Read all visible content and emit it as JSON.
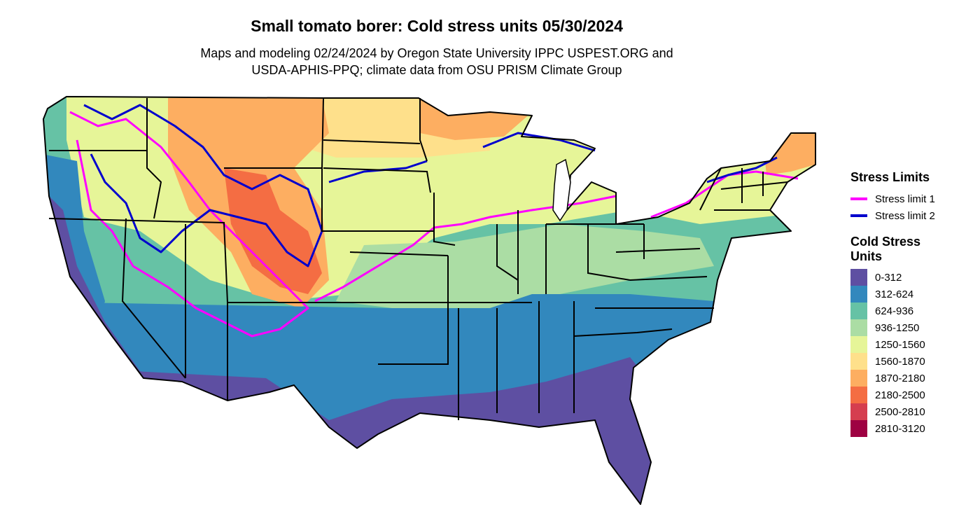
{
  "title": "Small tomato borer: Cold stress units 05/30/2024",
  "subtitle_line1": "Maps and modeling 02/24/2024 by Oregon State University IPPC USPEST.ORG and",
  "subtitle_line2": "USDA-APHIS-PPQ; climate data from OSU PRISM Climate Group",
  "legend": {
    "stress_title": "Stress Limits",
    "stress_items": [
      {
        "label": "Stress limit 1",
        "color": "#ff00ff"
      },
      {
        "label": "Stress limit 2",
        "color": "#0000cd"
      }
    ],
    "units_title_line1": "Cold Stress",
    "units_title_line2": "Units",
    "units_items": [
      {
        "label": "0-312",
        "color": "#5e4fa2"
      },
      {
        "label": "312-624",
        "color": "#3288bd"
      },
      {
        "label": "624-936",
        "color": "#66c2a5"
      },
      {
        "label": "936-1250",
        "color": "#abdda4"
      },
      {
        "label": "1250-1560",
        "color": "#e6f598"
      },
      {
        "label": "1560-1870",
        "color": "#fee08b"
      },
      {
        "label": "1870-2180",
        "color": "#fdae61"
      },
      {
        "label": "2180-2500",
        "color": "#f46d43"
      },
      {
        "label": "2500-2810",
        "color": "#d53e4f"
      },
      {
        "label": "2810-3120",
        "color": "#9e0142"
      }
    ]
  }
}
